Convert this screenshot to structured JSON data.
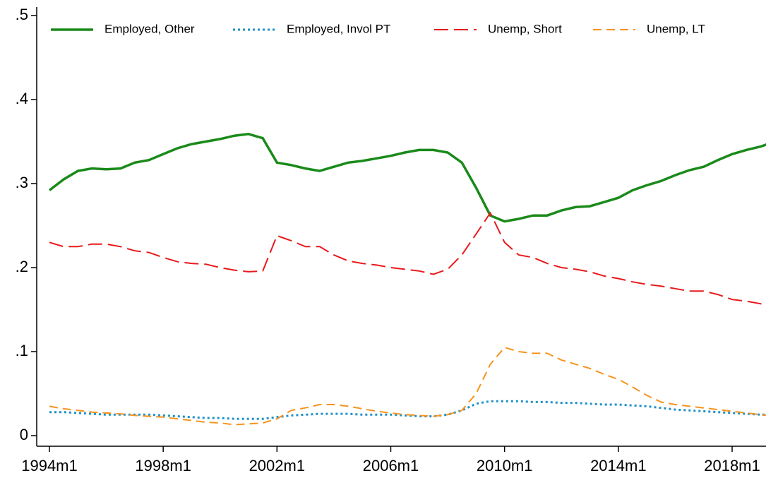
{
  "chart_data": {
    "type": "line",
    "x": [
      "1994m1",
      "1994m7",
      "1995m1",
      "1995m7",
      "1996m1",
      "1996m7",
      "1997m1",
      "1997m7",
      "1998m1",
      "1998m7",
      "1999m1",
      "1999m7",
      "2000m1",
      "2000m7",
      "2001m1",
      "2001m7",
      "2002m1",
      "2002m7",
      "2003m1",
      "2003m7",
      "2004m1",
      "2004m7",
      "2005m1",
      "2005m7",
      "2006m1",
      "2006m7",
      "2007m1",
      "2007m7",
      "2008m1",
      "2008m7",
      "2009m1",
      "2009m7",
      "2010m1",
      "2010m7",
      "2011m1",
      "2011m7",
      "2012m1",
      "2012m7",
      "2013m1",
      "2013m7",
      "2014m1",
      "2014m7",
      "2015m1",
      "2015m7",
      "2016m1",
      "2016m7",
      "2017m1",
      "2017m7",
      "2018m1",
      "2018m7",
      "2019m1",
      "2019m7",
      "2019m12"
    ],
    "series": [
      {
        "name": "Employed, Other",
        "color": "#1a8a1a",
        "style": "solid",
        "values": [
          0.292,
          0.305,
          0.315,
          0.318,
          0.317,
          0.318,
          0.325,
          0.328,
          0.335,
          0.342,
          0.347,
          0.35,
          0.353,
          0.357,
          0.359,
          0.354,
          0.325,
          0.322,
          0.318,
          0.315,
          0.32,
          0.325,
          0.327,
          0.33,
          0.333,
          0.337,
          0.34,
          0.34,
          0.337,
          0.325,
          0.295,
          0.262,
          0.255,
          0.258,
          0.262,
          0.262,
          0.268,
          0.272,
          0.273,
          0.278,
          0.283,
          0.292,
          0.298,
          0.303,
          0.31,
          0.316,
          0.32,
          0.328,
          0.335,
          0.34,
          0.344,
          0.35,
          0.357
        ]
      },
      {
        "name": "Employed, Invol PT",
        "color": "#1e90c8",
        "style": "dotted",
        "values": [
          0.028,
          0.028,
          0.027,
          0.026,
          0.025,
          0.025,
          0.025,
          0.025,
          0.024,
          0.023,
          0.022,
          0.021,
          0.021,
          0.02,
          0.02,
          0.02,
          0.022,
          0.024,
          0.025,
          0.026,
          0.026,
          0.026,
          0.025,
          0.025,
          0.025,
          0.024,
          0.023,
          0.023,
          0.025,
          0.03,
          0.038,
          0.041,
          0.041,
          0.041,
          0.04,
          0.04,
          0.039,
          0.039,
          0.038,
          0.037,
          0.037,
          0.036,
          0.035,
          0.033,
          0.031,
          0.03,
          0.029,
          0.028,
          0.027,
          0.026,
          0.025,
          0.025,
          0.024
        ]
      },
      {
        "name": "Unemp, Short",
        "color": "#e8191c",
        "style": "longdash",
        "values": [
          0.23,
          0.225,
          0.225,
          0.228,
          0.228,
          0.225,
          0.22,
          0.218,
          0.212,
          0.207,
          0.205,
          0.204,
          0.2,
          0.197,
          0.195,
          0.196,
          0.238,
          0.232,
          0.225,
          0.225,
          0.215,
          0.208,
          0.205,
          0.203,
          0.2,
          0.198,
          0.196,
          0.192,
          0.198,
          0.215,
          0.24,
          0.265,
          0.23,
          0.215,
          0.212,
          0.205,
          0.2,
          0.198,
          0.195,
          0.19,
          0.187,
          0.183,
          0.18,
          0.178,
          0.175,
          0.172,
          0.172,
          0.168,
          0.162,
          0.16,
          0.157,
          0.152,
          0.15
        ]
      },
      {
        "name": "Unemp, LT",
        "color": "#f6931e",
        "style": "dashed",
        "values": [
          0.035,
          0.032,
          0.03,
          0.028,
          0.027,
          0.026,
          0.024,
          0.023,
          0.022,
          0.02,
          0.018,
          0.016,
          0.015,
          0.013,
          0.014,
          0.015,
          0.02,
          0.03,
          0.033,
          0.037,
          0.037,
          0.035,
          0.032,
          0.029,
          0.027,
          0.025,
          0.024,
          0.023,
          0.025,
          0.03,
          0.05,
          0.085,
          0.105,
          0.1,
          0.098,
          0.098,
          0.09,
          0.085,
          0.08,
          0.073,
          0.067,
          0.058,
          0.048,
          0.04,
          0.037,
          0.035,
          0.033,
          0.031,
          0.029,
          0.027,
          0.025,
          0.023,
          0.022
        ]
      }
    ],
    "xticks": [
      "1994m1",
      "1998m1",
      "2002m1",
      "2006m1",
      "2010m1",
      "2014m1",
      "2018m1"
    ],
    "ylim": [
      0,
      0.5
    ],
    "yticks": [
      0,
      {
        "value": 0.1,
        "label": ".1"
      },
      {
        "value": 0.2,
        "label": ".2"
      },
      {
        "value": 0.3,
        "label": ".3"
      },
      {
        "value": 0.4,
        "label": ".4"
      },
      {
        "value": 0.5,
        "label": ".5"
      }
    ],
    "legend": "top",
    "grid": false
  }
}
